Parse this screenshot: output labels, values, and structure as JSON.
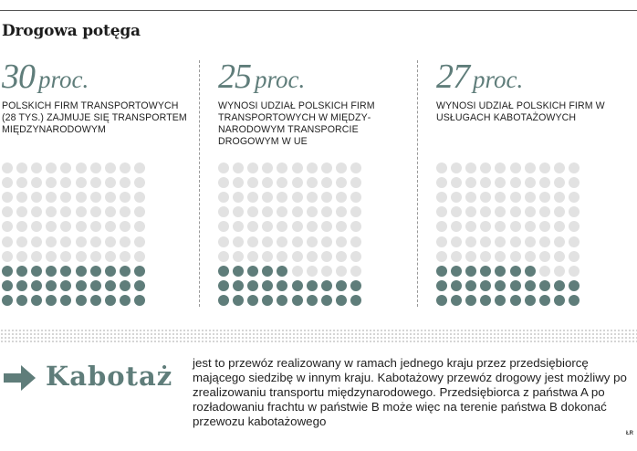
{
  "title": "Drogowa potęga",
  "panels": [
    {
      "value": "30",
      "unit": "proc.",
      "percent": 30,
      "description": "Polskich firm transporto­wych (28 tys.) zajmuje się transportem między­narodowym"
    },
    {
      "value": "25",
      "unit": "proc.",
      "percent": 25,
      "description": "wynosi udział polskich firm transportowych w między­narodowym transporcie drogowym w UE"
    },
    {
      "value": "27",
      "unit": "proc.",
      "percent": 27,
      "description": "wynosi udział polskich firm w usługach kabotażowych"
    }
  ],
  "kabotaz": {
    "term": "Kabotaż",
    "definition": "jest to przewóz realizowany w ramach jednego kraju przez przedsiębiorcę mającego siedzibę w innym kraju. Kabotażowy przewóz drogowy jest możliwy po zrealizowaniu transportu międzynarodowego. Przedsiębiorca z państwa A po rozładowaniu frachtu w państwie B może więc na terenie państwa B dokonać przewozu kabotażowego",
    "arrow_icon": "arrow-right-icon"
  },
  "credit": "ŁR",
  "colors": {
    "accent": "#5f7d7a",
    "dot_off": "#e2e2e2",
    "text": "#1c1c1c"
  }
}
